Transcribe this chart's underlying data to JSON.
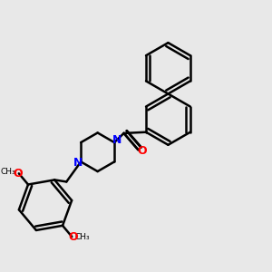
{
  "background_color": "#e8e8e8",
  "bond_color": "#000000",
  "nitrogen_color": "#0000ff",
  "oxygen_color": "#ff0000",
  "bond_width": 1.8,
  "dbo": 0.018,
  "figsize": [
    3.0,
    3.0
  ],
  "dpi": 100,
  "xlim": [
    -0.1,
    1.1
  ],
  "ylim": [
    -0.05,
    1.15
  ]
}
